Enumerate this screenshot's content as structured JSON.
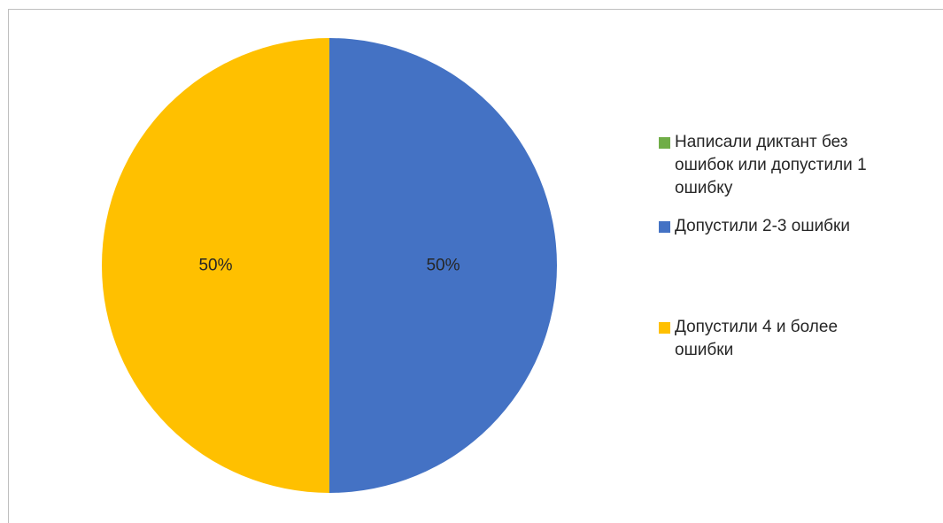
{
  "chart_data": {
    "type": "pie",
    "slices": [
      {
        "name": "Написали диктант без ошибок или допустили 1 ошибку",
        "value": 0,
        "label": "",
        "color": "#70ad47"
      },
      {
        "name": "Допустили 2-3 ошибки",
        "value": 50,
        "label": "50%",
        "color": "#4472c4"
      },
      {
        "name": "Допустили 4 и более ошибки",
        "value": 50,
        "label": "50%",
        "color": "#ffc000"
      }
    ],
    "start_angle_deg": 0,
    "direction": "clockwise",
    "legend_position": "right"
  },
  "legend": {
    "items": [
      {
        "label": "Написали диктант без ошибок или допустили 1 ошибку",
        "color": "#70ad47"
      },
      {
        "label": "Допустили 2-3 ошибки",
        "color": "#4472c4"
      },
      {
        "label": "Допустили 4 и более ошибки",
        "color": "#ffc000"
      }
    ]
  }
}
